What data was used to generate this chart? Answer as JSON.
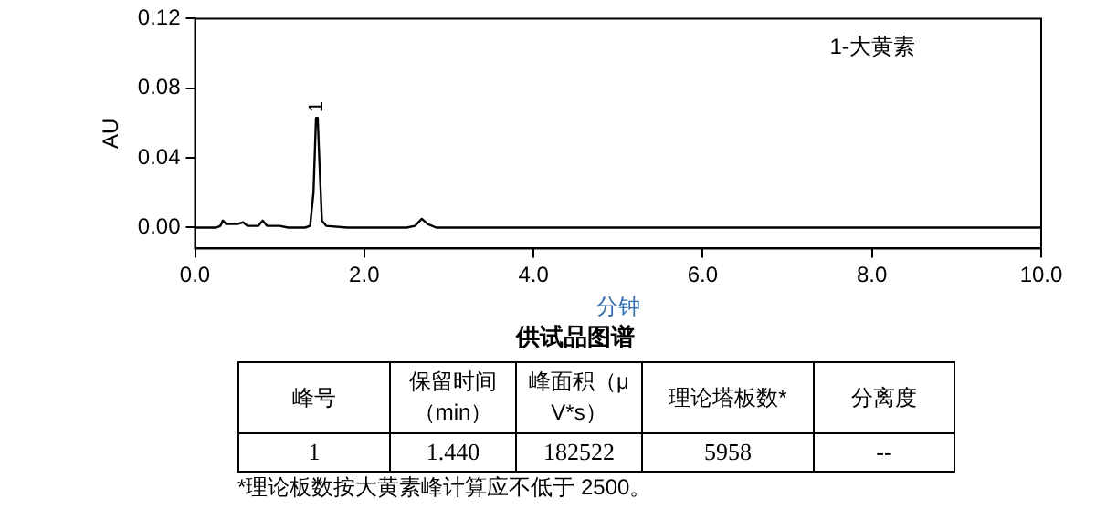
{
  "chart_data": [
    {
      "type": "line",
      "title": "供试品图谱",
      "xlabel": "分钟",
      "ylabel": "AU",
      "x": [
        0,
        0.25,
        0.3,
        0.33,
        0.37,
        0.5,
        0.57,
        0.62,
        0.75,
        0.8,
        0.85,
        1.0,
        1.1,
        1.3,
        1.36,
        1.4,
        1.43,
        1.45,
        1.47,
        1.5,
        1.55,
        1.8,
        2.5,
        2.6,
        2.68,
        2.75,
        2.85,
        3.0,
        10
      ],
      "series": [
        {
          "color": "#000000",
          "values": [
            0,
            0,
            0.001,
            0.004,
            0.002,
            0.002,
            0.003,
            0.001,
            0.001,
            0.004,
            0.001,
            0.001,
            0,
            0,
            0.001,
            0.02,
            0.063,
            0.063,
            0.038,
            0.004,
            0.001,
            0,
            0,
            0.001,
            0.005,
            0.002,
            0,
            0,
            0
          ]
        }
      ],
      "xlim": [
        0,
        10
      ],
      "xticks": [
        {
          "value": 0,
          "label": "0.0"
        },
        {
          "value": 2,
          "label": "2.0"
        },
        {
          "value": 4,
          "label": "4.0"
        },
        {
          "value": 6,
          "label": "6.0"
        },
        {
          "value": 8,
          "label": "8.0"
        },
        {
          "value": 10,
          "label": "10.0"
        }
      ],
      "ylim": [
        -0.012,
        0.12
      ],
      "yticks": [
        {
          "value": 0,
          "label": "0.00"
        },
        {
          "value": 0.04,
          "label": "0.04"
        },
        {
          "value": 0.08,
          "label": "0.08"
        },
        {
          "value": 0.12,
          "label": "0.12"
        }
      ],
      "annotations": [
        {
          "text": "1",
          "x": 1.44,
          "y": 0.063
        },
        "1-大黄素"
      ],
      "grid": false,
      "legend": false,
      "marker": "none",
      "line_style": "solid"
    },
    {
      "type": "other",
      "categories": [
        "峰号",
        "保留时间（min）",
        "峰面积（μV*s）",
        "理论塔板数*",
        "分离度"
      ],
      "value_labels": [
        "1",
        "1.440",
        "182522",
        "5958",
        "--"
      ],
      "annotations": [
        "*理论板数按大黄素峰计算应不低于 2500。"
      ]
    }
  ]
}
